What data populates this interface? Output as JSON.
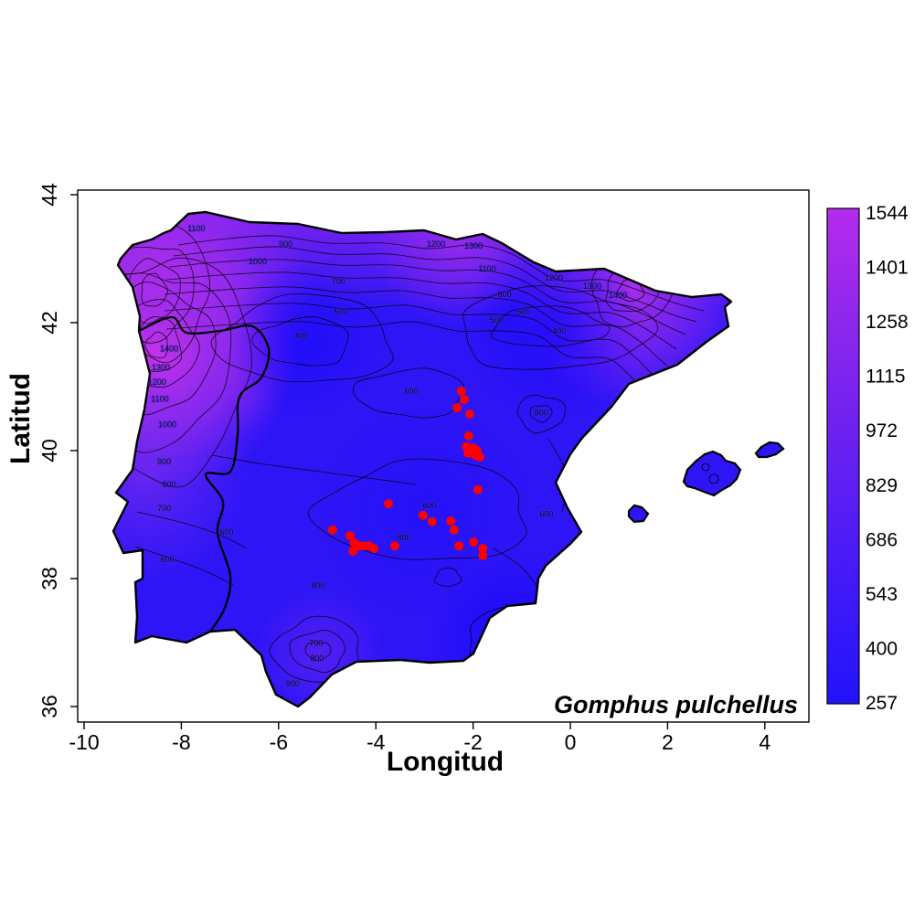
{
  "figure": {
    "xlabel": "Longitud",
    "ylabel": "Latitud",
    "species_label": "Gomphus pulchellus"
  },
  "chart_data": {
    "type": "heatmap",
    "subtype": "filled-contour-map-with-occurrences",
    "region": "Iberian Peninsula and Balearic Islands",
    "title": "",
    "xlabel": "Longitud",
    "ylabel": "Latitud",
    "x_ticks": [
      -10,
      -8,
      -6,
      -4,
      -2,
      0,
      2,
      4
    ],
    "y_ticks": [
      44,
      42,
      40,
      38,
      36
    ],
    "xlim": [
      -10.15,
      4.9
    ],
    "ylim": [
      35.7,
      44.05
    ],
    "grid": false,
    "annotation": "Gomphus pulchellus",
    "colorbar": {
      "position": "right",
      "min": 257,
      "max": 1544,
      "ticks": [
        1544,
        1401,
        1258,
        1115,
        972,
        829,
        686,
        543,
        400,
        257
      ],
      "color_low": "#2213FC",
      "color_mid": "#6E21F0",
      "color_high": "#B52BEC"
    },
    "occurrence_color": "#FF0000",
    "occurrences": [
      {
        "lon": -2.24,
        "lat": 40.93
      },
      {
        "lon": -2.18,
        "lat": 40.8
      },
      {
        "lon": -2.33,
        "lat": 40.67
      },
      {
        "lon": -2.07,
        "lat": 40.57
      },
      {
        "lon": -2.09,
        "lat": 40.23
      },
      {
        "lon": -2.14,
        "lat": 40.06
      },
      {
        "lon": -2.07,
        "lat": 40.01
      },
      {
        "lon": -1.99,
        "lat": 40.04
      },
      {
        "lon": -1.92,
        "lat": 40.0
      },
      {
        "lon": -2.1,
        "lat": 39.96
      },
      {
        "lon": -1.95,
        "lat": 39.93
      },
      {
        "lon": -1.86,
        "lat": 39.9
      },
      {
        "lon": -1.9,
        "lat": 39.39
      },
      {
        "lon": -3.74,
        "lat": 39.17
      },
      {
        "lon": -3.03,
        "lat": 38.99
      },
      {
        "lon": -2.84,
        "lat": 38.89
      },
      {
        "lon": -4.89,
        "lat": 38.76
      },
      {
        "lon": -4.53,
        "lat": 38.67
      },
      {
        "lon": -4.45,
        "lat": 38.56
      },
      {
        "lon": -4.34,
        "lat": 38.51
      },
      {
        "lon": -4.25,
        "lat": 38.51
      },
      {
        "lon": -4.14,
        "lat": 38.51
      },
      {
        "lon": -4.04,
        "lat": 38.47
      },
      {
        "lon": -4.47,
        "lat": 38.43
      },
      {
        "lon": -3.61,
        "lat": 38.51
      },
      {
        "lon": -2.46,
        "lat": 38.9
      },
      {
        "lon": -2.39,
        "lat": 38.76
      },
      {
        "lon": -2.29,
        "lat": 38.51
      },
      {
        "lon": -1.99,
        "lat": 38.57
      },
      {
        "lon": -1.8,
        "lat": 38.47
      },
      {
        "lon": -1.8,
        "lat": 38.36
      }
    ],
    "contour_labels": [
      {
        "v": 1100,
        "lon": -7.69,
        "lat": 43.47
      },
      {
        "v": 900,
        "lon": -5.85,
        "lat": 43.23
      },
      {
        "v": 1000,
        "lon": -6.43,
        "lat": 42.96
      },
      {
        "v": 1200,
        "lon": -2.76,
        "lat": 43.23
      },
      {
        "v": 1300,
        "lon": -1.99,
        "lat": 43.2
      },
      {
        "v": 700,
        "lon": -4.77,
        "lat": 42.64
      },
      {
        "v": 500,
        "lon": -4.72,
        "lat": 42.17
      },
      {
        "v": 400,
        "lon": -5.53,
        "lat": 41.79
      },
      {
        "v": 1400,
        "lon": -8.25,
        "lat": 41.59
      },
      {
        "v": 1300,
        "lon": -8.42,
        "lat": 41.3
      },
      {
        "v": 1200,
        "lon": -8.5,
        "lat": 41.07
      },
      {
        "v": 1100,
        "lon": -8.44,
        "lat": 40.81
      },
      {
        "v": 1000,
        "lon": -8.29,
        "lat": 40.41
      },
      {
        "v": 900,
        "lon": -8.35,
        "lat": 39.83
      },
      {
        "v": 800,
        "lon": -8.25,
        "lat": 39.47
      },
      {
        "v": 700,
        "lon": -8.35,
        "lat": 39.1
      },
      {
        "v": 1100,
        "lon": -1.71,
        "lat": 42.84
      },
      {
        "v": 1200,
        "lon": -0.34,
        "lat": 42.7
      },
      {
        "v": 1300,
        "lon": 0.45,
        "lat": 42.57
      },
      {
        "v": 1400,
        "lon": 0.98,
        "lat": 42.43
      },
      {
        "v": 800,
        "lon": -1.35,
        "lat": 42.44
      },
      {
        "v": 600,
        "lon": -0.96,
        "lat": 42.17
      },
      {
        "v": 500,
        "lon": -1.52,
        "lat": 42.04
      },
      {
        "v": 400,
        "lon": -0.23,
        "lat": 41.87
      },
      {
        "v": 600,
        "lon": -3.27,
        "lat": 40.93
      },
      {
        "v": 800,
        "lon": -0.6,
        "lat": 40.59
      },
      {
        "v": 600,
        "lon": -2.9,
        "lat": 39.14
      },
      {
        "v": 600,
        "lon": -0.49,
        "lat": 39.01
      },
      {
        "v": 800,
        "lon": -3.42,
        "lat": 38.64
      },
      {
        "v": 600,
        "lon": -7.07,
        "lat": 38.73
      },
      {
        "v": 600,
        "lon": -8.29,
        "lat": 38.3
      },
      {
        "v": 800,
        "lon": -5.19,
        "lat": 37.89
      },
      {
        "v": 700,
        "lon": -5.23,
        "lat": 36.99
      },
      {
        "v": 800,
        "lon": -5.21,
        "lat": 36.76
      },
      {
        "v": 900,
        "lon": -5.71,
        "lat": 36.36
      }
    ]
  }
}
